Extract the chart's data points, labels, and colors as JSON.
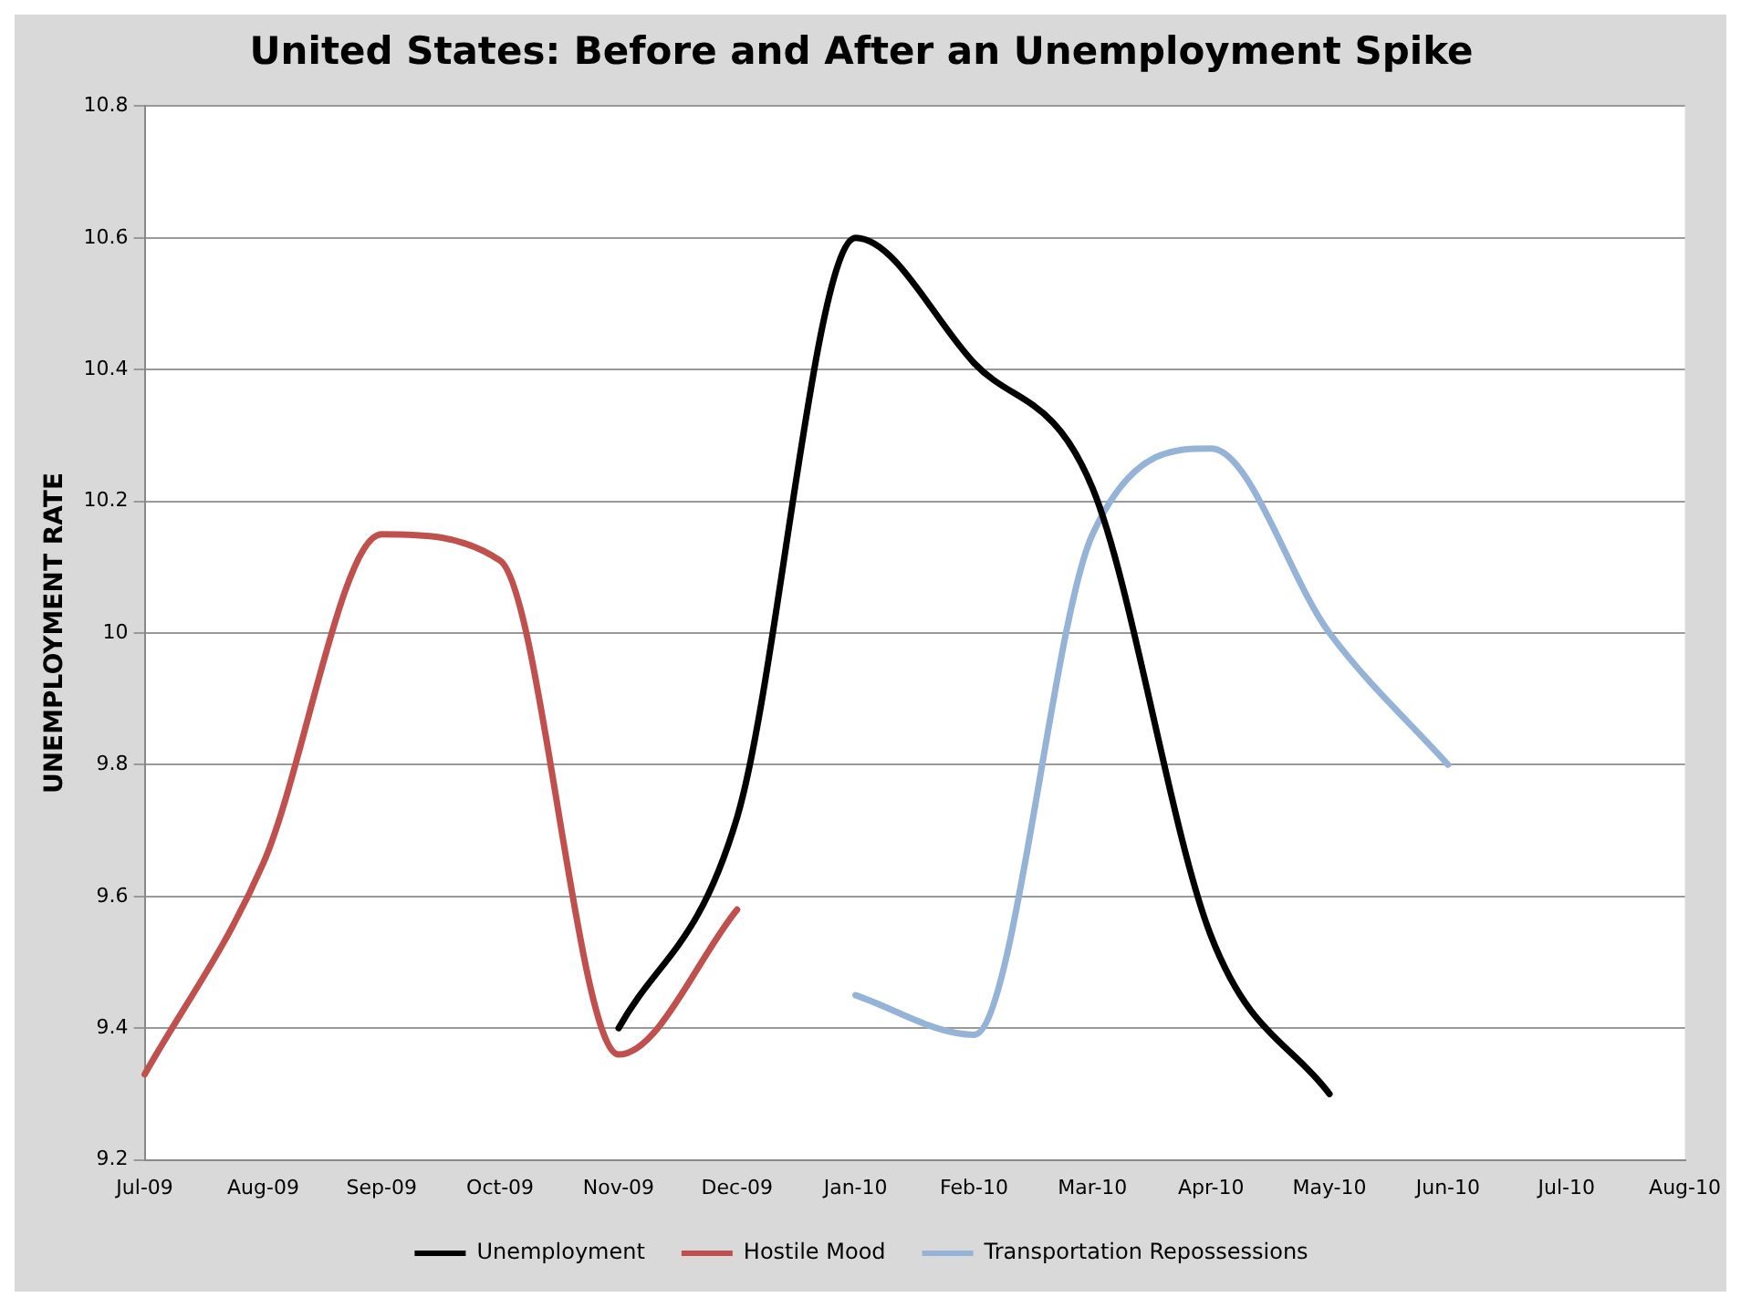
{
  "chart_data": {
    "type": "line",
    "title": "United States: Before and After an Unemployment Spike",
    "ylabel": "UNEMPLOYMENT RATE",
    "categories": [
      "Jul-09",
      "Aug-09",
      "Sep-09",
      "Oct-09",
      "Nov-09",
      "Dec-09",
      "Jan-10",
      "Feb-10",
      "Mar-10",
      "Apr-10",
      "May-10",
      "Jun-10",
      "Jul-10",
      "Aug-10"
    ],
    "series": [
      {
        "name": "Unemployment",
        "color": "#000000",
        "values": [
          null,
          null,
          null,
          null,
          9.4,
          9.72,
          10.6,
          10.41,
          10.22,
          9.54,
          9.3,
          null,
          null,
          null
        ]
      },
      {
        "name": "Hostile Mood",
        "color": "#c0504d",
        "values": [
          9.33,
          9.65,
          10.15,
          10.11,
          9.36,
          9.58,
          null,
          null,
          null,
          null,
          null,
          null,
          null,
          null
        ]
      },
      {
        "name": "Transportation Repossessions",
        "color": "#95b3d7",
        "values": [
          null,
          null,
          null,
          null,
          null,
          null,
          9.45,
          9.39,
          10.15,
          10.28,
          10.0,
          9.8,
          null,
          null
        ]
      }
    ],
    "ylim": [
      9.2,
      10.8
    ],
    "yticks": [
      9.2,
      9.4,
      9.6,
      9.8,
      10,
      10.2,
      10.4,
      10.6,
      10.8
    ],
    "grid": "y",
    "legend": "bottom",
    "marker": "none",
    "line_style": "solid"
  }
}
